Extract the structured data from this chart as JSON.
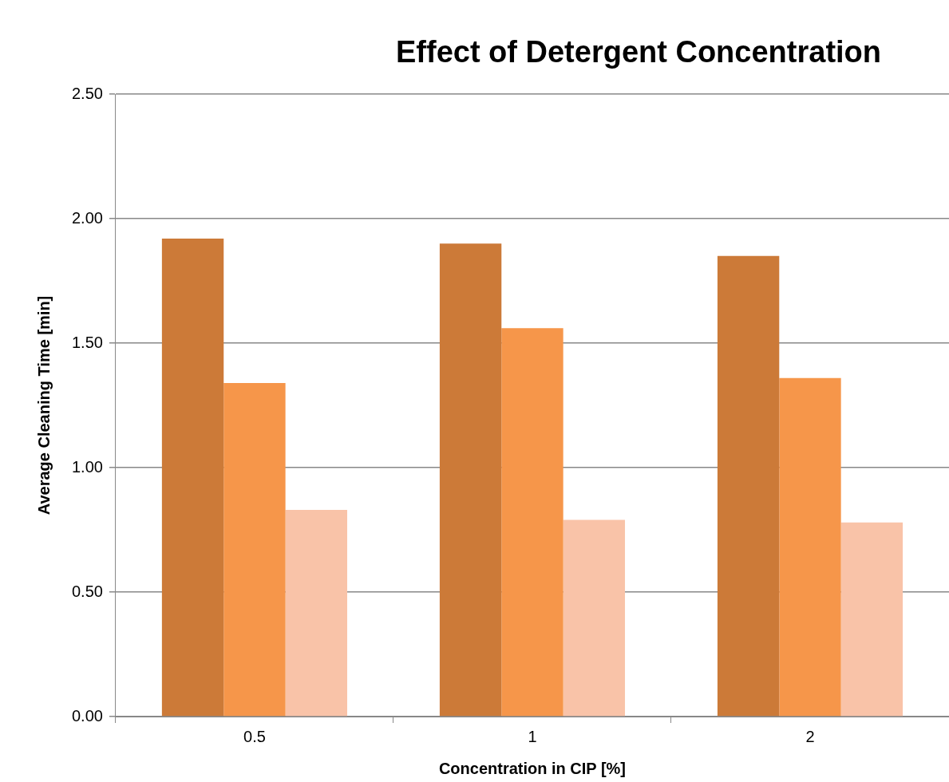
{
  "chart_data": {
    "type": "bar",
    "title": "Effect of Detergent Concentration",
    "xlabel": "Concentration in CIP [%]",
    "ylabel": "Average Cleaning Time [min]",
    "categories": [
      "0.5",
      "1",
      "2"
    ],
    "series": [
      {
        "color": "#cc7a38",
        "values": [
          1.92,
          1.9,
          1.85
        ]
      },
      {
        "color": "#f6964a",
        "values": [
          1.34,
          1.56,
          1.36
        ]
      },
      {
        "color": "#f9c3a8",
        "values": [
          0.83,
          0.79,
          0.78
        ]
      }
    ],
    "ylim": [
      0,
      2.5
    ],
    "yticks": [
      {
        "value": 0,
        "label": "0.00"
      },
      {
        "value": 0.5,
        "label": "0.50"
      },
      {
        "value": 1,
        "label": "1.00"
      },
      {
        "value": 1.5,
        "label": "1.50"
      },
      {
        "value": 2,
        "label": "2.00"
      },
      {
        "value": 2.5,
        "label": "2.50"
      }
    ],
    "grid": "y",
    "legend": false
  }
}
